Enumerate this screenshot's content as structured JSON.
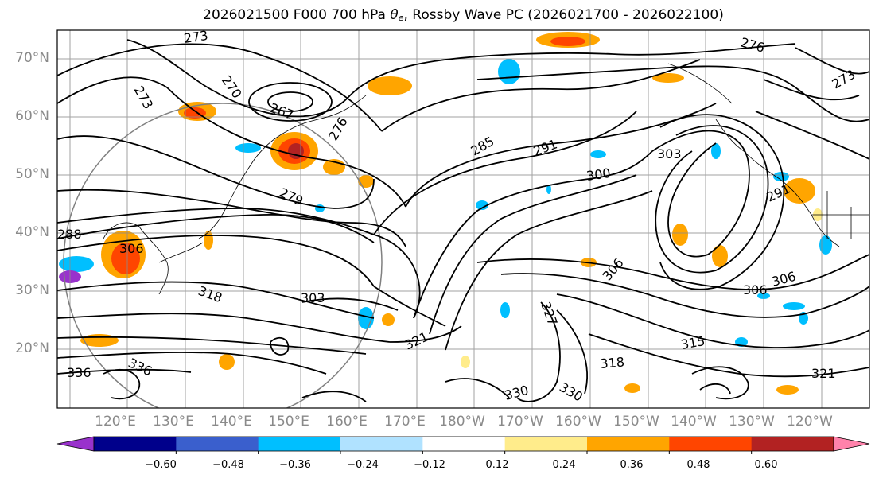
{
  "title": {
    "prefix": "2026021500 F000 700 hPa ",
    "theta": "θ",
    "theta_sub": "e",
    "suffix": ", Rossby Wave PC (2026021700 - 2026022100)"
  },
  "latitude_labels": [
    "70°N",
    "60°N",
    "50°N",
    "40°N",
    "30°N",
    "20°N"
  ],
  "longitude_labels": [
    "120°E",
    "130°E",
    "140°E",
    "150°E",
    "160°E",
    "170°E",
    "180°W",
    "170°W",
    "160°W",
    "150°W",
    "140°W",
    "130°W",
    "120°W"
  ],
  "contour_labels": [
    "273",
    "276",
    "270",
    "273",
    "267",
    "276",
    "285",
    "291",
    "303",
    "300",
    "279",
    "291",
    "288",
    "306",
    "306",
    "306",
    "306",
    "318",
    "303",
    "327",
    "321",
    "318",
    "315",
    "336",
    "330",
    "330",
    "321",
    "336",
    "273"
  ],
  "colorbar": {
    "colors": [
      "#9932cc",
      "#00008b",
      "#3a5fcd",
      "#00bfff",
      "#b0e2ff",
      "#ffffff",
      "#ffec8b",
      "#ffa500",
      "#ff4500",
      "#b22222",
      "#ff82ab"
    ],
    "tick_labels": [
      "−0.60",
      "−0.48",
      "−0.36",
      "−0.24",
      "−0.12",
      "0.12",
      "0.24",
      "0.36",
      "0.48",
      "0.60"
    ]
  },
  "colors": {
    "contour": "#000000",
    "grid": "#8c8c8c",
    "coast": "#000000",
    "axis_label": "#8a8a8a"
  }
}
